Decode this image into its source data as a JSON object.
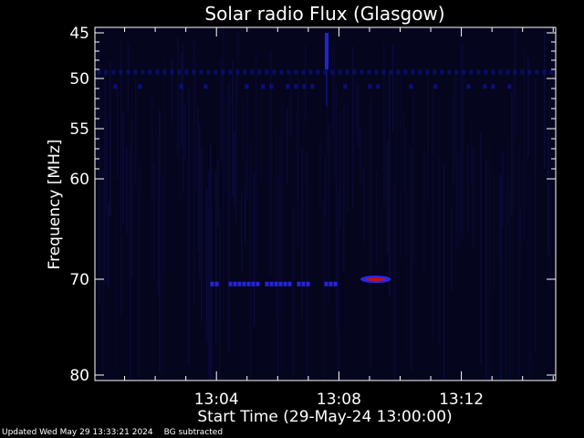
{
  "chart_data": {
    "type": "heatmap",
    "title": "Solar radio Flux (Glasgow)",
    "xlabel": "Start Time (29-May-24 13:00:00)",
    "ylabel": "Frequency [MHz]",
    "x_unit": "minutes after 13:00:00",
    "xlim": [
      0,
      15
    ],
    "ylim": [
      45,
      80
    ],
    "y_scale": "nonlinear (vertical spacing not uniform)",
    "x_ticks": [
      {
        "value": 4,
        "label": "13:04"
      },
      {
        "value": 8,
        "label": "13:08"
      },
      {
        "value": 12,
        "label": "13:12"
      }
    ],
    "y_ticks": [
      {
        "value": 45,
        "label": "45"
      },
      {
        "value": 50,
        "label": "50"
      },
      {
        "value": 55,
        "label": "55"
      },
      {
        "value": 60,
        "label": "60"
      },
      {
        "value": 70,
        "label": "70"
      },
      {
        "value": 80,
        "label": "80"
      }
    ],
    "background_color": "#000000",
    "plot_color": "#05051e",
    "signal_colors": {
      "low": "#1010a0",
      "mid": "#2a2aff",
      "high": "#c01010"
    },
    "features": [
      {
        "name": "band ~49 MHz",
        "freq_mhz": 49.3,
        "x_start": 0.1,
        "x_end": 15,
        "intensity": 0.55,
        "pattern": "dashed"
      },
      {
        "name": "band ~51 MHz",
        "freq_mhz": 50.8,
        "x_start": 0.1,
        "x_end": 15,
        "intensity": 0.75,
        "pattern": "sparse"
      },
      {
        "name": "band ~70.5 MHz",
        "freq_mhz": 70.5,
        "x_start": 3.8,
        "x_end": 7.9,
        "intensity": 0.85,
        "pattern": "dense"
      },
      {
        "name": "burst ~70 MHz",
        "freq_mhz": 70.0,
        "x_start": 8.7,
        "x_end": 9.7,
        "intensity": 1.0,
        "pattern": "hot"
      },
      {
        "name": "vertical burst",
        "freq_mhz_range": [
          45,
          49
        ],
        "x": 7.6,
        "intensity": 0.8,
        "pattern": "vertical"
      }
    ]
  },
  "footer": {
    "updated": "Updated Wed May 29 13:33:21 2024",
    "note": "BG subtracted"
  }
}
